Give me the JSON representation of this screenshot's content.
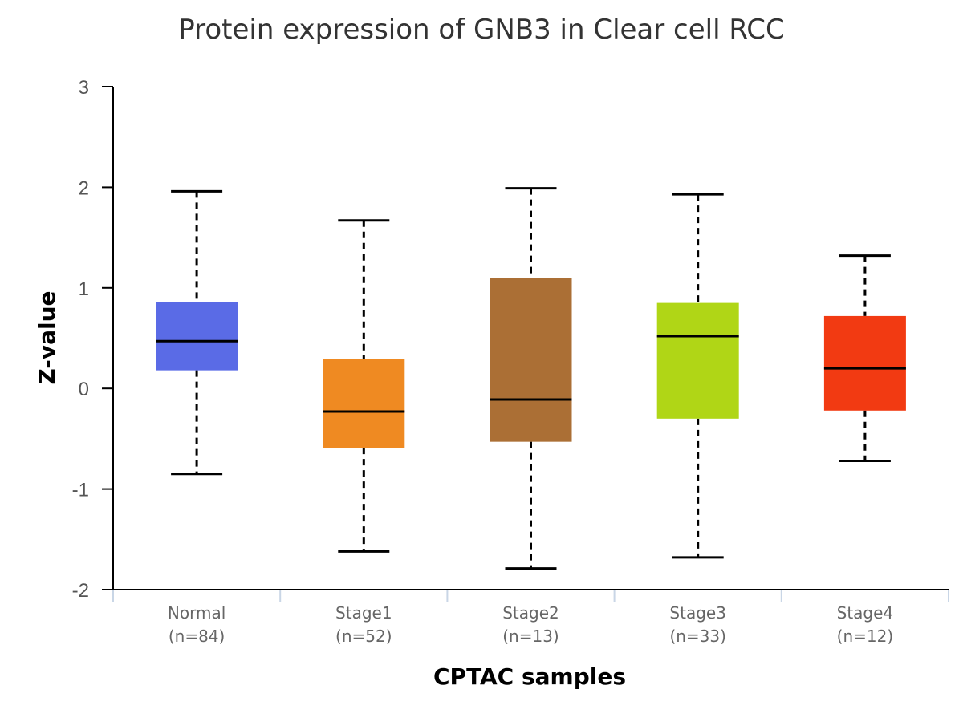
{
  "chart_data": {
    "type": "box",
    "title": "Protein expression of GNB3 in Clear cell RCC",
    "xlabel": "CPTAC samples",
    "ylabel": "Z-value",
    "ylim": [
      -2,
      3
    ],
    "yticks": [
      "-2",
      "-1",
      "0",
      "1",
      "2",
      "3"
    ],
    "grid": false,
    "legend": "none",
    "categories": [
      {
        "name": "Normal",
        "n_label": "(n=84)",
        "color": "#5a6be6",
        "min": -0.85,
        "q1": 0.18,
        "median": 0.47,
        "q3": 0.86,
        "max": 1.96
      },
      {
        "name": "Stage1",
        "n_label": "(n=52)",
        "color": "#ef8a22",
        "min": -1.62,
        "q1": -0.59,
        "median": -0.23,
        "q3": 0.29,
        "max": 1.67
      },
      {
        "name": "Stage2",
        "n_label": "(n=13)",
        "color": "#ab6f35",
        "min": -1.79,
        "q1": -0.53,
        "median": -0.11,
        "q3": 1.1,
        "max": 1.99
      },
      {
        "name": "Stage3",
        "n_label": "(n=33)",
        "color": "#b0d616",
        "min": -1.68,
        "q1": -0.3,
        "median": 0.52,
        "q3": 0.85,
        "max": 1.93
      },
      {
        "name": "Stage4",
        "n_label": "(n=12)",
        "color": "#f23a12",
        "min": -0.72,
        "q1": -0.22,
        "median": 0.2,
        "q3": 0.72,
        "max": 1.32
      }
    ]
  }
}
